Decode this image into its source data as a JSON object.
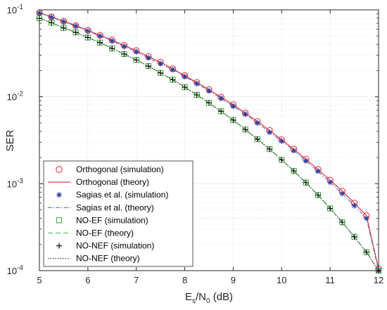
{
  "chart_data": {
    "type": "line",
    "title": "",
    "xlabel": {
      "base": "E",
      "sub1": "s",
      "mid": "/N",
      "sub2": "0",
      "tail": " (dB)"
    },
    "ylabel": "SER",
    "xlim": [
      5,
      12
    ],
    "ylim": [
      0.0001,
      0.1
    ],
    "yscale": "log",
    "grid": "on",
    "legend_position": "bottom-left",
    "x_ticks": [
      "5",
      "6",
      "7",
      "8",
      "9",
      "10",
      "11",
      "12"
    ],
    "y_ticks": [
      {
        "base": "10",
        "exp": "-1"
      },
      {
        "base": "10",
        "exp": "-2"
      },
      {
        "base": "10",
        "exp": "-3"
      },
      {
        "base": "10",
        "exp": "-4"
      }
    ],
    "x": [
      5.0,
      5.25,
      5.5,
      5.75,
      6.0,
      6.25,
      6.5,
      6.75,
      7.0,
      7.25,
      7.5,
      7.75,
      8.0,
      8.25,
      8.5,
      8.75,
      9.0,
      9.25,
      9.5,
      9.75,
      10.0,
      10.25,
      10.5,
      10.75,
      11.0,
      11.25,
      11.5,
      11.75,
      12.0
    ],
    "series": [
      {
        "name": "Orthogonal (simulation)",
        "kind": "marker",
        "marker": "circle",
        "color": "#e8262a",
        "values": [
          0.093,
          0.083,
          0.074,
          0.066,
          0.058,
          0.051,
          0.045,
          0.039,
          0.034,
          0.029,
          0.025,
          0.021,
          0.0175,
          0.0146,
          0.0121,
          0.0099,
          0.0081,
          0.0065,
          0.0052,
          0.0041,
          0.0032,
          0.0025,
          0.00192,
          0.00146,
          0.0011,
          0.00082,
          0.0006,
          0.00043,
          0.000105
        ]
      },
      {
        "name": "Orthogonal (theory)",
        "kind": "line",
        "dash": "",
        "color": "#e8262a",
        "values": [
          0.093,
          0.083,
          0.074,
          0.066,
          0.058,
          0.051,
          0.045,
          0.039,
          0.034,
          0.029,
          0.025,
          0.021,
          0.0175,
          0.0146,
          0.0121,
          0.0099,
          0.0081,
          0.0065,
          0.0052,
          0.0041,
          0.0032,
          0.0025,
          0.00192,
          0.00146,
          0.0011,
          0.00082,
          0.0006,
          0.00043,
          0.000105
        ]
      },
      {
        "name": "Sagias et al. (simulation)",
        "kind": "marker",
        "marker": "star",
        "color": "#2b3f9e",
        "values": [
          0.092,
          0.082,
          0.073,
          0.065,
          0.057,
          0.05,
          0.044,
          0.038,
          0.033,
          0.028,
          0.024,
          0.0205,
          0.0171,
          0.0142,
          0.0117,
          0.0096,
          0.0078,
          0.0063,
          0.005,
          0.0039,
          0.0031,
          0.0024,
          0.00183,
          0.00139,
          0.00104,
          0.00077,
          0.00056,
          0.0004,
          0.0001
        ]
      },
      {
        "name": "Sagias et al. (theory)",
        "kind": "line",
        "dash": "6 2 1.5 2",
        "color": "#5a6fc7",
        "values": [
          0.092,
          0.082,
          0.073,
          0.065,
          0.057,
          0.05,
          0.044,
          0.038,
          0.033,
          0.028,
          0.024,
          0.0205,
          0.0171,
          0.0142,
          0.0117,
          0.0096,
          0.0078,
          0.0063,
          0.005,
          0.0039,
          0.0031,
          0.0024,
          0.00183,
          0.00139,
          0.00104,
          0.00077,
          0.00056,
          0.0004,
          0.0001
        ]
      },
      {
        "name": "NO-EF (simulation)",
        "kind": "marker",
        "marker": "square",
        "color": "#3aa63a",
        "values": [
          0.08,
          0.071,
          0.062,
          0.055,
          0.048,
          0.042,
          0.036,
          0.031,
          0.0265,
          0.0225,
          0.0188,
          0.0157,
          0.0129,
          0.0105,
          0.0085,
          0.0068,
          0.0054,
          0.0042,
          0.00325,
          0.0025,
          0.00188,
          0.0014,
          0.00103,
          0.00074,
          0.00052,
          0.00036,
          0.000245,
          0.000163,
          0.0001
        ]
      },
      {
        "name": "NO-EF (theory)",
        "kind": "line",
        "dash": "7 4",
        "color": "#4cb84c",
        "values": [
          0.08,
          0.071,
          0.062,
          0.055,
          0.048,
          0.042,
          0.036,
          0.031,
          0.0265,
          0.0225,
          0.0188,
          0.0157,
          0.0129,
          0.0105,
          0.0085,
          0.0068,
          0.0054,
          0.0042,
          0.00325,
          0.0025,
          0.00188,
          0.0014,
          0.00103,
          0.00074,
          0.00052,
          0.00036,
          0.000245,
          0.000163,
          0.0001
        ]
      },
      {
        "name": "NO-NEF (simulation)",
        "kind": "marker",
        "marker": "plus",
        "color": "#111111",
        "values": [
          0.08,
          0.071,
          0.062,
          0.055,
          0.048,
          0.042,
          0.036,
          0.031,
          0.0265,
          0.0225,
          0.0188,
          0.0157,
          0.0129,
          0.0105,
          0.0085,
          0.0068,
          0.0054,
          0.0042,
          0.00325,
          0.0025,
          0.00188,
          0.0014,
          0.00103,
          0.00074,
          0.00052,
          0.00036,
          0.000245,
          0.000163,
          0.0001
        ]
      },
      {
        "name": "NO-NEF (theory)",
        "kind": "line",
        "dash": "1.5 2",
        "color": "#222222",
        "values": [
          0.08,
          0.071,
          0.062,
          0.055,
          0.048,
          0.042,
          0.036,
          0.031,
          0.0265,
          0.0225,
          0.0188,
          0.0157,
          0.0129,
          0.0105,
          0.0085,
          0.0068,
          0.0054,
          0.0042,
          0.00325,
          0.0025,
          0.00188,
          0.0014,
          0.00103,
          0.00074,
          0.00052,
          0.00036,
          0.000245,
          0.000163,
          0.0001
        ]
      }
    ]
  }
}
